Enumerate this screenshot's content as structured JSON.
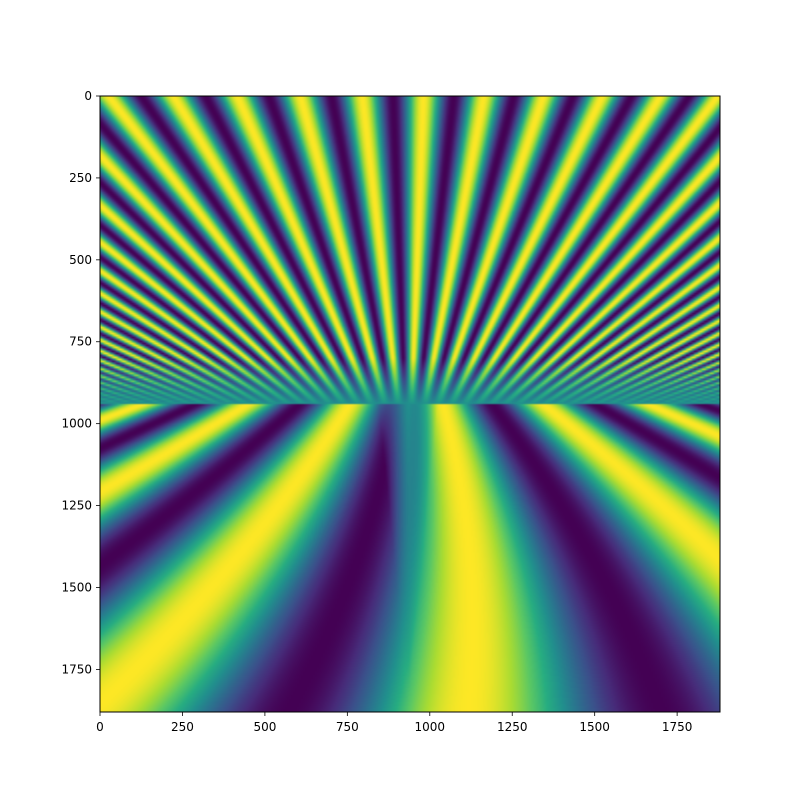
{
  "chart_data": {
    "type": "heatmap",
    "title": "",
    "xlabel": "",
    "ylabel": "",
    "colormap": "viridis",
    "value_range": [
      -1,
      1
    ],
    "grid": false,
    "colorbar": false,
    "xlim": [
      0,
      1880
    ],
    "ylim": [
      1880,
      0
    ],
    "y_axis_inverted": true,
    "x_ticks": [
      0,
      250,
      500,
      750,
      1000,
      1250,
      1500,
      1750
    ],
    "y_ticks": [
      0,
      250,
      500,
      750,
      1000,
      1250,
      1500,
      1750
    ],
    "x_tick_labels": [
      "0",
      "250",
      "500",
      "750",
      "1000",
      "1250",
      "1500",
      "1750"
    ],
    "y_tick_labels": [
      "0",
      "250",
      "500",
      "750",
      "1000",
      "1250",
      "1500",
      "1750"
    ],
    "grid_size": [
      1880,
      1880
    ],
    "pattern": {
      "description_values": "interference fringes converging to a focus",
      "focus_point": [
        935,
        940
      ],
      "top_stripe_period": 185,
      "bottom_stripe_period": 820
    }
  }
}
